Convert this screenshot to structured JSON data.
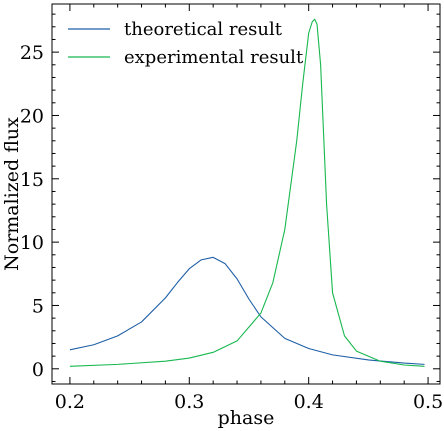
{
  "chart_data": {
    "type": "line",
    "xlabel": "phase",
    "ylabel": "Normalized flux",
    "xlim": [
      0.185,
      0.51
    ],
    "ylim": [
      -1.2,
      28.8
    ],
    "x_ticks": [
      0.2,
      0.3,
      0.4,
      0.5
    ],
    "x_tick_labels": [
      "0.2",
      "0.3",
      "0.4",
      "0.5"
    ],
    "y_ticks": [
      0,
      5,
      10,
      15,
      20,
      25
    ],
    "y_tick_labels": [
      "0",
      "5",
      "10",
      "15",
      "20",
      "25"
    ],
    "legend_placement": "top-left",
    "grid": false,
    "series": [
      {
        "name": "theoretical result",
        "color": "#1f5fa6",
        "x": [
          0.2,
          0.22,
          0.24,
          0.26,
          0.28,
          0.29,
          0.3,
          0.31,
          0.32,
          0.33,
          0.34,
          0.35,
          0.36,
          0.38,
          0.4,
          0.42,
          0.45,
          0.48,
          0.497
        ],
        "y": [
          1.5,
          1.9,
          2.6,
          3.7,
          5.6,
          6.8,
          7.9,
          8.6,
          8.8,
          8.3,
          7.1,
          5.5,
          4.1,
          2.4,
          1.6,
          1.1,
          0.7,
          0.45,
          0.35
        ]
      },
      {
        "name": "experimental result",
        "color": "#18b84f",
        "x": [
          0.2,
          0.24,
          0.28,
          0.3,
          0.32,
          0.34,
          0.36,
          0.37,
          0.38,
          0.39,
          0.395,
          0.4,
          0.403,
          0.405,
          0.407,
          0.41,
          0.415,
          0.42,
          0.43,
          0.44,
          0.46,
          0.48,
          0.497
        ],
        "y": [
          0.2,
          0.35,
          0.6,
          0.85,
          1.3,
          2.2,
          4.4,
          6.8,
          11.0,
          18.0,
          22.5,
          26.5,
          27.4,
          27.6,
          27.2,
          24.0,
          13.0,
          6.0,
          2.6,
          1.4,
          0.6,
          0.3,
          0.2
        ]
      }
    ]
  }
}
